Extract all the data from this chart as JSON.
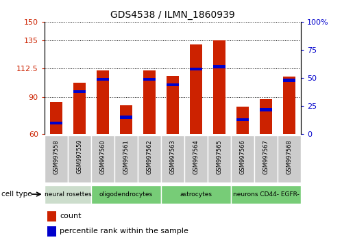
{
  "title": "GDS4538 / ILMN_1860939",
  "samples": [
    "GSM997558",
    "GSM997559",
    "GSM997560",
    "GSM997561",
    "GSM997562",
    "GSM997563",
    "GSM997564",
    "GSM997565",
    "GSM997566",
    "GSM997567",
    "GSM997568"
  ],
  "count_values": [
    86,
    101,
    111,
    83,
    111,
    107,
    132,
    135,
    82,
    88,
    106
  ],
  "percentile_values": [
    10,
    38,
    49,
    15,
    49,
    44,
    58,
    60,
    13,
    22,
    48
  ],
  "ylim_left": [
    60,
    150
  ],
  "yticks_left": [
    60,
    90,
    112.5,
    135,
    150
  ],
  "ytick_labels_left": [
    "60",
    "90",
    "112.5",
    "135",
    "150"
  ],
  "ylim_right": [
    0,
    100
  ],
  "yticks_right": [
    0,
    25,
    50,
    75,
    100
  ],
  "ytick_labels_right": [
    "0",
    "25",
    "50",
    "75",
    "100%"
  ],
  "bar_color": "#cc2200",
  "blue_color": "#0000cc",
  "cell_type_defs": [
    {
      "label": "neural rosettes",
      "color": "#ccddcc",
      "start": 0,
      "end": 2
    },
    {
      "label": "oligodendrocytes",
      "color": "#77cc77",
      "start": 2,
      "end": 5
    },
    {
      "label": "astrocytes",
      "color": "#77cc77",
      "start": 5,
      "end": 8
    },
    {
      "label": "neurons CD44- EGFR-",
      "color": "#77cc77",
      "start": 8,
      "end": 11
    }
  ],
  "sample_bg_color": "#cccccc",
  "legend_count_label": "count",
  "legend_percentile_label": "percentile rank within the sample",
  "cell_type_label": "cell type"
}
